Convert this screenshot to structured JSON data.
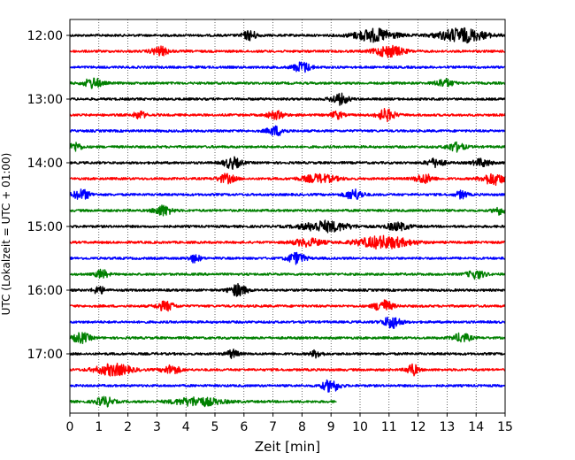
{
  "chart_data": {
    "type": "line",
    "title": "",
    "xlabel": "Zeit  [min]",
    "ylabel": "UTC (Lokalzeit = UTC + 01:00)",
    "xlim": [
      0,
      15
    ],
    "x_ticks": [
      "0",
      "1",
      "2",
      "3",
      "4",
      "5",
      "6",
      "7",
      "8",
      "9",
      "10",
      "11",
      "12",
      "13",
      "14",
      "15"
    ],
    "y_ticks": [
      "12:00",
      "13:00",
      "14:00",
      "15:00",
      "16:00",
      "17:00"
    ],
    "row_minutes": 15,
    "grid": "vertical dotted",
    "colors": [
      "#000000",
      "#ff0000",
      "#0000ff",
      "#008000"
    ],
    "traces": [
      {
        "start": "12:00",
        "end_min": 15,
        "events": [
          [
            6.2,
            0.25,
            1.6
          ],
          [
            10.5,
            0.7,
            2.2
          ],
          [
            13.5,
            0.8,
            2.4
          ]
        ]
      },
      {
        "start": "12:15",
        "end_min": 15,
        "events": [
          [
            3.1,
            0.3,
            1.5
          ],
          [
            11.0,
            0.5,
            1.9
          ]
        ]
      },
      {
        "start": "12:30",
        "end_min": 15,
        "events": [
          [
            8.0,
            0.3,
            1.8
          ]
        ]
      },
      {
        "start": "12:45",
        "end_min": 15,
        "events": [
          [
            0.8,
            0.3,
            1.8
          ],
          [
            12.9,
            0.3,
            1.4
          ]
        ]
      },
      {
        "start": "13:00",
        "end_min": 15,
        "events": [
          [
            9.3,
            0.3,
            1.8
          ]
        ]
      },
      {
        "start": "13:15",
        "end_min": 15,
        "events": [
          [
            2.4,
            0.2,
            1.3
          ],
          [
            7.1,
            0.3,
            1.3
          ],
          [
            9.2,
            0.2,
            1.3
          ],
          [
            10.9,
            0.3,
            2.0
          ]
        ]
      },
      {
        "start": "13:30",
        "end_min": 15,
        "events": [
          [
            7.1,
            0.3,
            1.6
          ]
        ]
      },
      {
        "start": "13:45",
        "end_min": 15,
        "events": [
          [
            0.2,
            0.2,
            1.5
          ],
          [
            13.3,
            0.3,
            1.5
          ]
        ]
      },
      {
        "start": "14:00",
        "end_min": 15,
        "events": [
          [
            5.6,
            0.3,
            1.9
          ],
          [
            12.6,
            0.3,
            1.4
          ],
          [
            14.2,
            0.3,
            1.3
          ]
        ]
      },
      {
        "start": "14:15",
        "end_min": 15,
        "events": [
          [
            5.4,
            0.3,
            1.5
          ],
          [
            8.6,
            0.6,
            1.4
          ],
          [
            12.2,
            0.3,
            1.6
          ],
          [
            14.6,
            0.4,
            2.0
          ]
        ]
      },
      {
        "start": "14:30",
        "end_min": 15,
        "events": [
          [
            0.4,
            0.3,
            1.7
          ],
          [
            9.8,
            0.3,
            1.8
          ],
          [
            13.5,
            0.2,
            1.3
          ]
        ]
      },
      {
        "start": "14:45",
        "end_min": 15,
        "events": [
          [
            3.2,
            0.3,
            1.8
          ],
          [
            14.8,
            0.2,
            1.3
          ]
        ]
      },
      {
        "start": "15:00",
        "end_min": 15,
        "events": [
          [
            8.8,
            0.8,
            1.8
          ],
          [
            11.3,
            0.4,
            1.3
          ]
        ]
      },
      {
        "start": "15:15",
        "end_min": 15,
        "events": [
          [
            8.2,
            0.5,
            1.3
          ],
          [
            10.8,
            0.9,
            2.1
          ]
        ]
      },
      {
        "start": "15:30",
        "end_min": 15,
        "events": [
          [
            4.3,
            0.2,
            1.3
          ],
          [
            7.8,
            0.3,
            1.9
          ]
        ]
      },
      {
        "start": "15:45",
        "end_min": 15,
        "events": [
          [
            1.1,
            0.2,
            1.6
          ],
          [
            14.0,
            0.3,
            1.4
          ]
        ]
      },
      {
        "start": "16:00",
        "end_min": 15,
        "events": [
          [
            1.0,
            0.2,
            1.3
          ],
          [
            5.8,
            0.3,
            2.0
          ]
        ]
      },
      {
        "start": "16:15",
        "end_min": 15,
        "events": [
          [
            3.3,
            0.3,
            1.6
          ],
          [
            10.8,
            0.3,
            2.1
          ]
        ]
      },
      {
        "start": "16:30",
        "end_min": 15,
        "events": [
          [
            11.1,
            0.3,
            2.1
          ]
        ]
      },
      {
        "start": "16:45",
        "end_min": 15,
        "events": [
          [
            0.4,
            0.3,
            1.7
          ],
          [
            13.5,
            0.3,
            1.5
          ]
        ]
      },
      {
        "start": "17:00",
        "end_min": 15,
        "events": [
          [
            5.6,
            0.2,
            1.4
          ],
          [
            8.5,
            0.2,
            1.2
          ]
        ]
      },
      {
        "start": "17:15",
        "end_min": 15,
        "events": [
          [
            1.5,
            0.6,
            2.0
          ],
          [
            3.5,
            0.3,
            1.5
          ],
          [
            11.8,
            0.2,
            2.0
          ]
        ]
      },
      {
        "start": "17:30",
        "end_min": 15,
        "events": [
          [
            9.0,
            0.3,
            2.1
          ]
        ]
      },
      {
        "start": "17:45",
        "end_min": 9.2,
        "events": [
          [
            1.2,
            0.3,
            1.6
          ],
          [
            4.4,
            0.8,
            1.5
          ]
        ]
      }
    ]
  }
}
